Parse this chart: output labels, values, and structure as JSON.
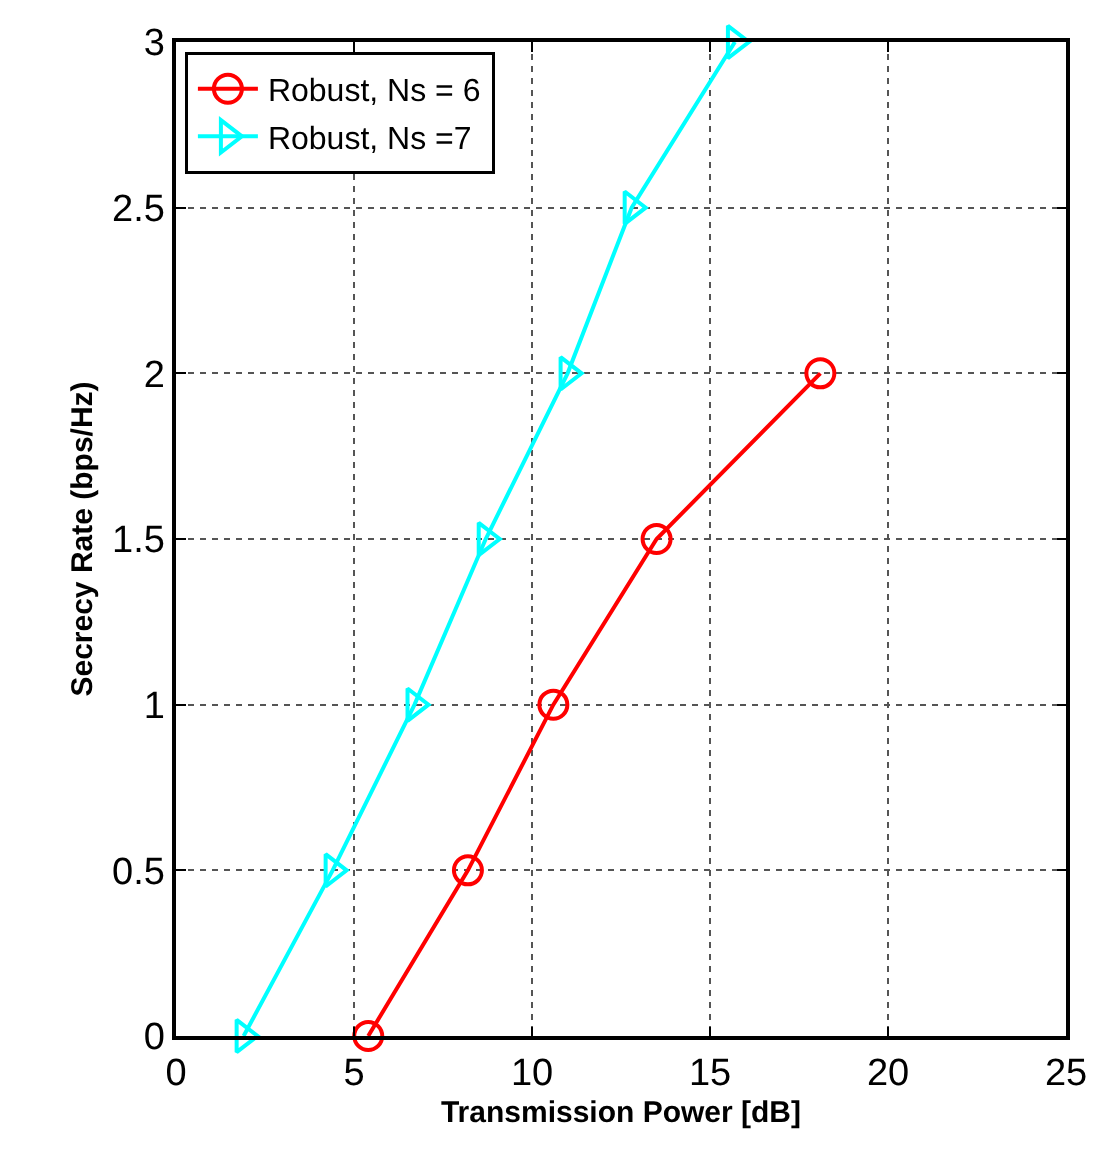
{
  "chart_data": {
    "type": "line",
    "xlabel": "Transmission Power [dB]",
    "ylabel": "Secrecy Rate (bps/Hz)",
    "xlim": [
      0,
      25
    ],
    "xticks": [
      0,
      5,
      10,
      15,
      20,
      25
    ],
    "ylim": [
      0,
      3
    ],
    "yticks": [
      0,
      0.5,
      1,
      1.5,
      2,
      2.5,
      3
    ],
    "grid": true,
    "legend": "top left",
    "series": [
      {
        "name": "Robust, Ns = 6",
        "color": "#ff0000",
        "marker": "circle",
        "x": [
          5.4,
          8.2,
          10.6,
          13.5,
          18.1
        ],
        "values": [
          0,
          0.5,
          1,
          1.5,
          2
        ]
      },
      {
        "name": "Robust, Ns =7",
        "color": "#00ffff",
        "marker": "triangle",
        "x": [
          1.9,
          4.4,
          6.7,
          8.7,
          11.0,
          12.8,
          15.7
        ],
        "values": [
          0,
          0.5,
          1,
          1.5,
          2,
          2.5,
          3
        ]
      }
    ]
  }
}
